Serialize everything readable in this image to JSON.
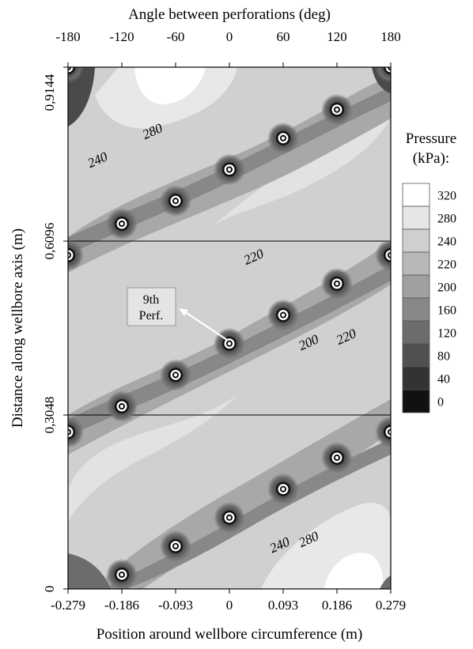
{
  "chart_data": {
    "type": "heatmap",
    "subtype": "filled-contour",
    "top_axis": {
      "label": "Angle between perforations (deg)",
      "ticks": [
        "-180",
        "-120",
        "-60",
        "0",
        "60",
        "120",
        "180"
      ],
      "values": [
        -180,
        -120,
        -60,
        0,
        60,
        120,
        180
      ]
    },
    "x_axis": {
      "label": "Position around wellbore circumference (m)",
      "ticks": [
        "-0.279",
        "-0.186",
        "-0.093",
        "0",
        "0.093",
        "0.186",
        "0.279"
      ],
      "values": [
        -0.279,
        -0.186,
        -0.093,
        0,
        0.093,
        0.186,
        0.279
      ],
      "range": [
        -0.279,
        0.279
      ]
    },
    "y_axis": {
      "label": "Distance along wellbore axis (m)",
      "ticks": [
        "0",
        "0,3048",
        "0,6096",
        "0,9144"
      ],
      "values": [
        0,
        0.3048,
        0.6096,
        0.9144
      ],
      "range": [
        0,
        0.9144
      ]
    },
    "legend": {
      "title_line1": "Pressure",
      "title_line2": "(kPa):",
      "placement": "right",
      "levels": [
        "320",
        "280",
        "240",
        "220",
        "200",
        "160",
        "120",
        "80",
        "40",
        "0"
      ],
      "colors": [
        "#ffffff",
        "#e6e6e6",
        "#cfcfcf",
        "#b8b8b8",
        "#a0a0a0",
        "#888888",
        "#6c6c6c",
        "#505050",
        "#333333",
        "#111111"
      ]
    },
    "grid_lines_y": [
      0.3048,
      0.6096
    ],
    "perforations": [
      {
        "x": -0.279,
        "y": 0.9144
      },
      {
        "x": 0.279,
        "y": 0.9144
      },
      {
        "x": 0.186,
        "y": 0.84
      },
      {
        "x": 0.093,
        "y": 0.79
      },
      {
        "x": 0,
        "y": 0.735
      },
      {
        "x": -0.093,
        "y": 0.68
      },
      {
        "x": -0.186,
        "y": 0.64
      },
      {
        "x": -0.279,
        "y": 0.585
      },
      {
        "x": 0.279,
        "y": 0.585
      },
      {
        "x": 0.186,
        "y": 0.535
      },
      {
        "x": 0.093,
        "y": 0.48
      },
      {
        "x": 0,
        "y": 0.43
      },
      {
        "x": -0.093,
        "y": 0.375
      },
      {
        "x": -0.186,
        "y": 0.32
      },
      {
        "x": -0.279,
        "y": 0.275
      },
      {
        "x": 0.279,
        "y": 0.275
      },
      {
        "x": 0.186,
        "y": 0.23
      },
      {
        "x": 0.093,
        "y": 0.175
      },
      {
        "x": 0,
        "y": 0.125
      },
      {
        "x": -0.093,
        "y": 0.075
      },
      {
        "x": -0.186,
        "y": 0.025
      }
    ],
    "contour_labels": [
      {
        "text": "280",
        "x": -0.13,
        "y": 0.795
      },
      {
        "text": "240",
        "x": -0.225,
        "y": 0.745
      },
      {
        "text": "220",
        "x": 0.045,
        "y": 0.575
      },
      {
        "text": "200",
        "x": 0.14,
        "y": 0.425
      },
      {
        "text": "220",
        "x": 0.205,
        "y": 0.435
      },
      {
        "text": "240",
        "x": 0.09,
        "y": 0.07
      },
      {
        "text": "280",
        "x": 0.14,
        "y": 0.08
      }
    ],
    "annotation": {
      "line1": "9th",
      "line2": "Perf.",
      "points_to": {
        "x": 0,
        "y": 0.43
      }
    }
  }
}
